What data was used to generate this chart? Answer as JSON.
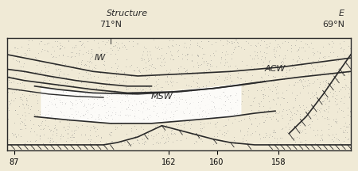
{
  "bg_color": "#f0ead6",
  "title_top": "Structure",
  "title_top_right": "E",
  "label_71N": "71°N",
  "label_69N": "69°N",
  "label_IW": "IW",
  "label_ACW": "ACW",
  "label_MSW": "MSW",
  "x_ticks": [
    0.02,
    0.47,
    0.61,
    0.79
  ],
  "x_labels": [
    "87",
    "162",
    "160",
    "158"
  ],
  "line_color": "#2a2a2a",
  "dot_color": "#999999",
  "hatch_color": "#555555",
  "font_size_title": 8,
  "font_size_label": 8,
  "font_size_tick": 7
}
